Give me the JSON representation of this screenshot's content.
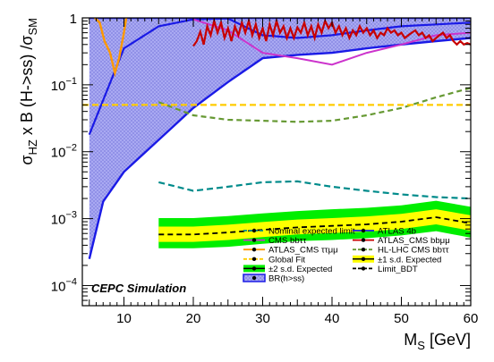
{
  "chart_data": {
    "type": "line",
    "xlabel_main": "M",
    "xlabel_sub": "S",
    "xlabel_unit": " [GeV]",
    "ylabel_parts": [
      {
        "t": "σ",
        "sub": false
      },
      {
        "t": "HZ",
        "sub": true
      },
      {
        "t": " x B (H->ss) /",
        "sub": false
      },
      {
        "t": "σ",
        "sub": false
      },
      {
        "t": "SM",
        "sub": true
      }
    ],
    "x_range": [
      4,
      60
    ],
    "y_range": [
      5e-05,
      1
    ],
    "y_scale": "log",
    "x_ticks": [
      "10",
      "20",
      "30",
      "40",
      "50",
      "60"
    ],
    "y_ticks": [
      {
        "value": 1,
        "base": "1",
        "exp": ""
      },
      {
        "value": 0.1,
        "base": "10",
        "exp": "−1"
      },
      {
        "value": 0.01,
        "base": "10",
        "exp": "−2"
      },
      {
        "value": 0.001,
        "base": "10",
        "exp": "−3"
      },
      {
        "value": 0.0001,
        "base": "10",
        "exp": "−4"
      }
    ],
    "annotation": "CEPC Simulation",
    "legend": [
      {
        "label": "Nominal expected limit",
        "style": "nominal"
      },
      {
        "label": "ATLAS 4b",
        "style": "atlas4b"
      },
      {
        "label": "CMS bbττ",
        "style": "cmsbbtt"
      },
      {
        "label": "ATLAS_CMS bbμμ",
        "style": "atlascmsbbmm"
      },
      {
        "label": "ATLAS_CMS ττμμ",
        "style": "atlascmsttmm"
      },
      {
        "label": "HL-LHC CMS bbττ",
        "style": "hllhc"
      },
      {
        "label": "Global Fit",
        "style": "globalfit"
      },
      {
        "label": "±1 s.d. Expected",
        "style": "band1"
      },
      {
        "label": "±2 s.d. Expected",
        "style": "band2"
      },
      {
        "label": "Limit_BDT",
        "style": "limitbdt"
      },
      {
        "label": "BR(h>ss)",
        "style": "br"
      }
    ],
    "colors": {
      "nominal": "#008b8b",
      "atlas4b": "#1a1ae6",
      "cmsbbtt": "#cc33cc",
      "atlascmsbbmm": "#c80000",
      "atlascmsttmm": "#ff9900",
      "hllhc": "#669933",
      "globalfit": "#ffcc00",
      "band1": "#ffff00",
      "band2": "#00ee00",
      "limitbdt": "#000000",
      "br_fill": "#9999ee",
      "br_line": "#1a1ae6"
    },
    "series": {
      "br_upper": {
        "x": [
          5,
          10,
          15,
          20,
          25,
          30,
          35,
          40,
          45,
          50,
          55,
          60
        ],
        "y": [
          1,
          1,
          1,
          1,
          1,
          1,
          1,
          1,
          1,
          1,
          1,
          1
        ]
      },
      "br_lower": {
        "x": [
          5,
          7,
          10,
          15,
          20,
          25,
          30,
          35,
          40,
          45,
          50,
          55,
          60
        ],
        "y": [
          0.00025,
          0.0018,
          0.005,
          0.015,
          0.045,
          0.11,
          0.25,
          0.28,
          0.3,
          0.35,
          0.4,
          0.45,
          0.5
        ]
      },
      "atlas4b": {
        "x": [
          5,
          10,
          15,
          20,
          25,
          30,
          35,
          40,
          45,
          50,
          55,
          60
        ],
        "y": [
          0.018,
          0.35,
          0.75,
          0.95,
          0.98,
          0.55,
          0.5,
          0.55,
          0.65,
          0.75,
          0.8,
          0.85
        ]
      },
      "br_boundary": {
        "x": [
          5,
          10,
          15,
          20,
          25,
          30,
          35,
          40,
          45,
          50,
          55,
          60
        ],
        "y": [
          1,
          1,
          1,
          1,
          1,
          1,
          1,
          1,
          1,
          1,
          1,
          1
        ]
      },
      "cms_bbtt": {
        "x": [
          20,
          25,
          30,
          35,
          40,
          45,
          50,
          55,
          60
        ],
        "y": [
          0.95,
          0.65,
          0.3,
          0.25,
          0.2,
          0.3,
          0.4,
          0.55,
          0.6
        ]
      },
      "atlas_cms_bbmm": {
        "x": [
          20,
          20.5,
          21,
          21.5,
          22,
          22.5,
          23,
          23.5,
          24,
          24.5,
          25,
          25.5,
          26,
          26.5,
          27,
          27.5,
          28,
          28.5,
          29,
          29.5,
          30,
          30.5,
          31,
          31.5,
          32,
          32.5,
          33,
          33.5,
          34,
          34.5,
          35,
          35.5,
          36,
          36.5,
          37,
          37.5,
          38,
          38.5,
          39,
          39.5,
          40,
          40.5,
          41,
          41.5,
          42,
          42.5,
          43,
          43.5,
          44,
          44.5,
          45,
          45.5,
          46,
          46.5,
          47,
          47.5,
          48,
          48.5,
          49,
          49.5,
          50,
          50.5,
          51,
          51.5,
          52,
          52.5,
          53,
          53.5,
          54,
          54.5,
          55,
          55.5,
          56,
          56.5,
          57,
          57.5,
          58,
          58.5,
          59,
          59.5,
          60
        ],
        "y": [
          0.38,
          0.45,
          0.62,
          0.4,
          0.75,
          0.55,
          0.9,
          0.6,
          0.85,
          0.5,
          0.7,
          0.45,
          0.75,
          0.55,
          0.85,
          0.6,
          0.9,
          0.55,
          0.8,
          0.5,
          0.7,
          0.45,
          0.8,
          0.55,
          0.9,
          0.6,
          0.75,
          0.5,
          0.7,
          0.5,
          0.72,
          0.6,
          0.85,
          0.55,
          0.75,
          0.5,
          0.8,
          0.6,
          0.9,
          0.7,
          0.85,
          0.6,
          0.75,
          0.55,
          0.7,
          0.5,
          0.65,
          0.55,
          0.75,
          0.6,
          0.7,
          0.55,
          0.65,
          0.5,
          0.6,
          0.55,
          0.7,
          0.6,
          0.65,
          0.55,
          0.6,
          0.5,
          0.55,
          0.6,
          0.65,
          0.55,
          0.6,
          0.5,
          0.55,
          0.45,
          0.5,
          0.55,
          0.6,
          0.5,
          0.55,
          0.45,
          0.4,
          0.45,
          0.4,
          0.42,
          0.4
        ]
      },
      "atlas_cms_ttmm": {
        "x": [
          5.2,
          5.8,
          6.5,
          7.2,
          8,
          8.7,
          9.3,
          10,
          10.4
        ],
        "y": [
          1.1,
          1.0,
          0.85,
          0.45,
          0.3,
          0.15,
          0.25,
          0.6,
          1.1
        ]
      },
      "hllhc": {
        "x": [
          15,
          20,
          25,
          30,
          35,
          40,
          45,
          50,
          55,
          60
        ],
        "y": [
          0.055,
          0.035,
          0.03,
          0.029,
          0.028,
          0.029,
          0.035,
          0.045,
          0.065,
          0.09
        ]
      },
      "global_fit": {
        "x": [
          4,
          60
        ],
        "y": [
          0.05,
          0.05
        ]
      },
      "nominal": {
        "x": [
          15,
          20,
          25,
          30,
          35,
          40,
          45,
          50,
          55,
          60
        ],
        "y": [
          0.0035,
          0.0026,
          0.003,
          0.0035,
          0.0036,
          0.003,
          0.0026,
          0.0023,
          0.0021,
          0.002
        ]
      },
      "limit_bdt": {
        "x": [
          15,
          20,
          25,
          30,
          35,
          40,
          45,
          50,
          55,
          60
        ],
        "y": [
          0.00058,
          0.00058,
          0.00062,
          0.00068,
          0.00074,
          0.00078,
          0.00082,
          0.0009,
          0.00105,
          0.00085
        ]
      },
      "band1_lo": [
        0.00045,
        0.00045,
        0.00048,
        0.00053,
        0.00058,
        0.00061,
        0.00064,
        0.0007,
        0.00082,
        0.00066
      ],
      "band1_hi": [
        0.00076,
        0.00076,
        0.00081,
        0.00089,
        0.00097,
        0.00102,
        0.00108,
        0.00118,
        0.00138,
        0.00112
      ],
      "band2_lo": [
        0.00036,
        0.00036,
        0.00038,
        0.00042,
        0.00046,
        0.00048,
        0.00051,
        0.00056,
        0.00065,
        0.00052
      ],
      "band2_hi": [
        0.00102,
        0.00102,
        0.00109,
        0.0012,
        0.0013,
        0.00138,
        0.00145,
        0.00158,
        0.00185,
        0.0015
      ]
    }
  }
}
